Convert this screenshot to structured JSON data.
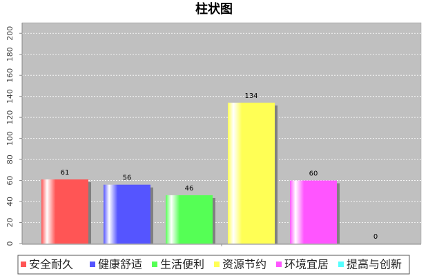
{
  "chart_data": {
    "type": "bar",
    "title": "柱状图",
    "series": [
      {
        "name": "安全耐久",
        "color": "#ff5555",
        "values": [
          61
        ]
      },
      {
        "name": "健康舒适",
        "color": "#5555ff",
        "values": [
          56
        ]
      },
      {
        "name": "生活便利",
        "color": "#55ff55",
        "values": [
          46
        ]
      },
      {
        "name": "资源节约",
        "color": "#ffff55",
        "values": [
          134
        ]
      },
      {
        "name": "环境宜居",
        "color": "#ff55ff",
        "values": [
          60
        ]
      },
      {
        "name": "提高与创新",
        "color": "#55ffff",
        "values": [
          0
        ]
      }
    ],
    "ylim": [
      0,
      210
    ],
    "yticks": [
      0,
      20,
      40,
      60,
      80,
      100,
      120,
      140,
      160,
      180,
      200
    ],
    "grid": true,
    "legend": "bottom"
  }
}
